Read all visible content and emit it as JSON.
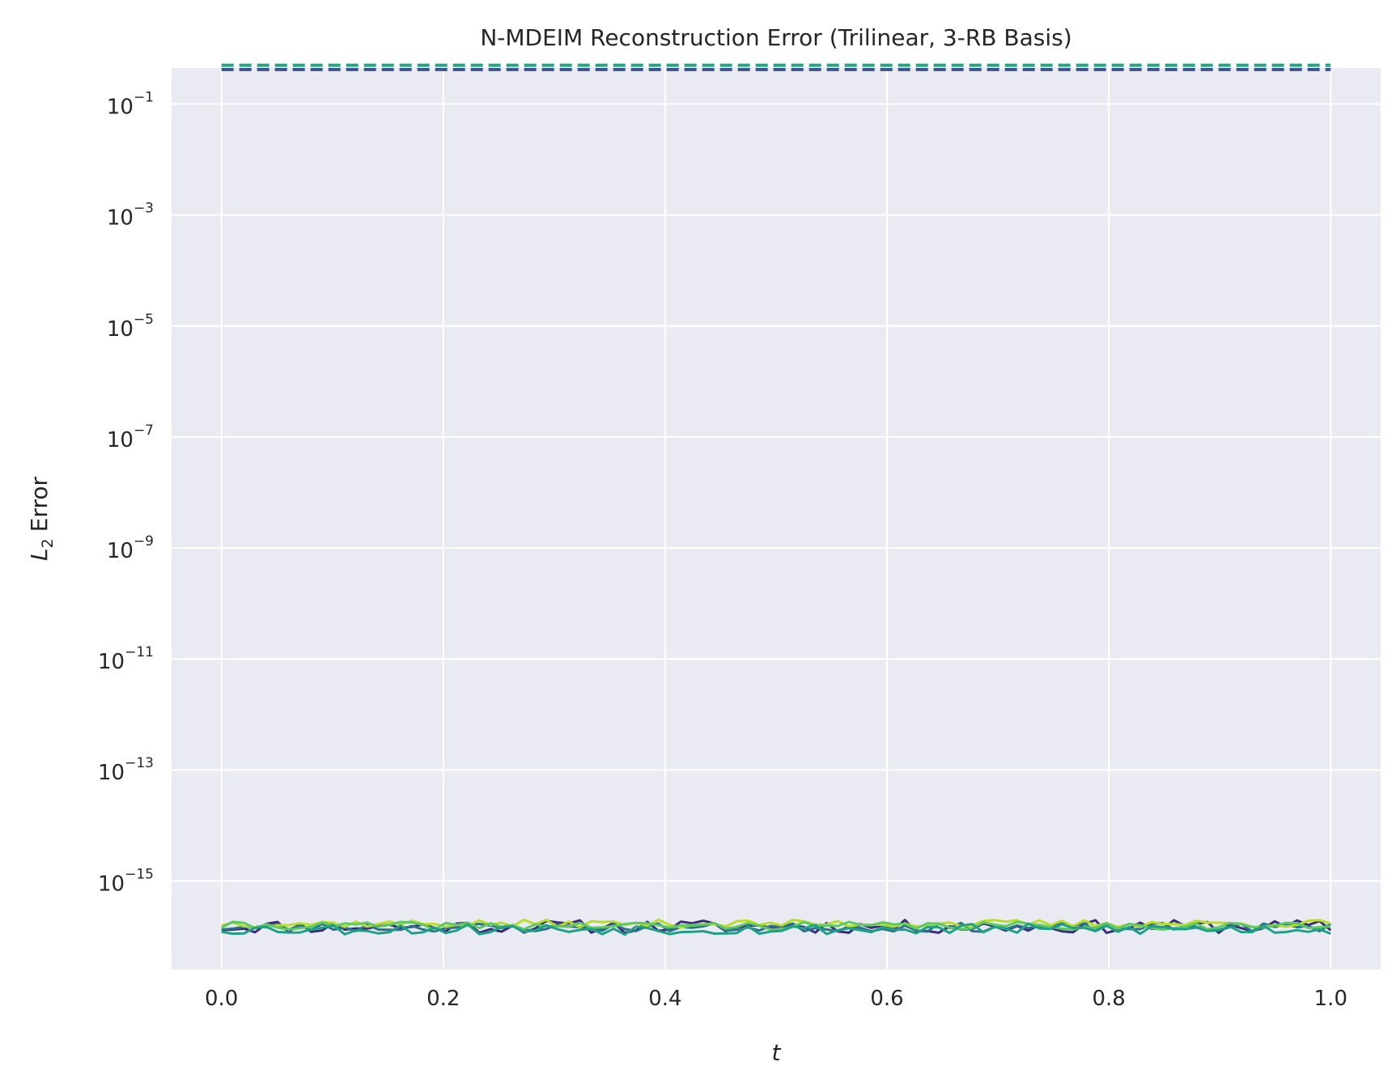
{
  "chart_data": {
    "type": "line",
    "title": "N-MDEIM Reconstruction Error (Trilinear, 3-RB Basis)",
    "xlabel_symbol": "t",
    "ylabel_symbol": "L",
    "ylabel_subscript": "2",
    "ylabel_text": "Error",
    "xscale": "linear",
    "yscale": "log",
    "xlim": [
      -0.045,
      1.045
    ],
    "ylim_log10": [
      -16.6,
      -0.35
    ],
    "grid": true,
    "background": "#eaeaf2",
    "grid_color": "#ffffff",
    "x_ticks": [
      0.0,
      0.2,
      0.4,
      0.6,
      0.8,
      1.0
    ],
    "x_tick_labels": [
      "0.0",
      "0.2",
      "0.4",
      "0.6",
      "0.8",
      "1.0"
    ],
    "y_tick_exponents": [
      -1,
      -3,
      -5,
      -7,
      -9,
      -11,
      -13,
      -15
    ],
    "y_tick_base": "10",
    "y_tick_exponent_labels": [
      "−1",
      "−3",
      "−5",
      "−7",
      "−9",
      "−11",
      "−13",
      "−15"
    ],
    "x_range": [
      0.0,
      1.0
    ],
    "n_points": 100,
    "dashed_series": [
      {
        "style": "dashed",
        "color": "#21a685",
        "value": 0.5
      },
      {
        "style": "dashed",
        "color": "#3b528b",
        "value": 0.42
      }
    ],
    "solid_series": [
      {
        "style": "solid",
        "color": "#3b2c7a",
        "mean": 1.5e-16,
        "spread": 0.12,
        "seed": 11
      },
      {
        "style": "solid",
        "color": "#2c728e",
        "mean": 1.45e-16,
        "spread": 0.08,
        "seed": 23
      },
      {
        "style": "solid",
        "color": "#b5de2b",
        "mean": 1.7e-16,
        "spread": 0.07,
        "seed": 37
      },
      {
        "style": "solid",
        "color": "#5ec962",
        "mean": 1.55e-16,
        "spread": 0.07,
        "seed": 41
      },
      {
        "style": "solid",
        "color": "#1fa187",
        "mean": 1.35e-16,
        "spread": 0.1,
        "seed": 53
      }
    ]
  }
}
